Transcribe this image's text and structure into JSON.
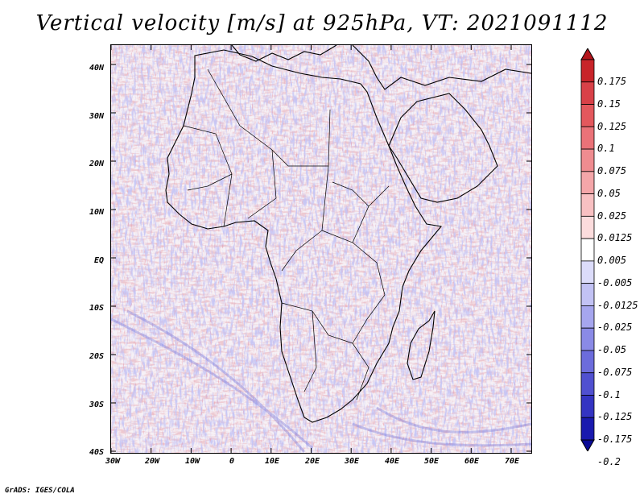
{
  "title": "Vertical velocity [m/s] at 925hPa, VT: 2021091112",
  "footer": "GrADS: IGES/COLA",
  "map": {
    "region": "Africa",
    "variable": "Vertical velocity",
    "units": "m/s",
    "level": "925hPa",
    "valid_time": "2021091112",
    "lat_labels": [
      "40N",
      "30N",
      "20N",
      "10N",
      "EQ",
      "10S",
      "20S",
      "30S",
      "40S"
    ],
    "lon_labels": [
      "30W",
      "20W",
      "10W",
      "0",
      "10E",
      "20E",
      "30E",
      "40E",
      "50E",
      "60E",
      "70E"
    ]
  },
  "colorbar": {
    "labels": [
      "0.175",
      "0.15",
      "0.125",
      "0.1",
      "0.075",
      "0.05",
      "0.025",
      "0.0125",
      "0.005",
      "-0.005",
      "-0.0125",
      "-0.025",
      "-0.05",
      "-0.075",
      "-0.1",
      "-0.125",
      "-0.175",
      "-0.2"
    ],
    "colors": [
      "#b4151c",
      "#c8242a",
      "#d84148",
      "#e3585d",
      "#ea7278",
      "#ef8c90",
      "#f4a6a9",
      "#f8c0c2",
      "#fcdcdd",
      "#ffffff",
      "#dcdcfa",
      "#c2c2f4",
      "#a6a6ee",
      "#8a8ae6",
      "#6c6cdc",
      "#5050d0",
      "#3434c2",
      "#1a1aae",
      "#0a0a96"
    ]
  }
}
